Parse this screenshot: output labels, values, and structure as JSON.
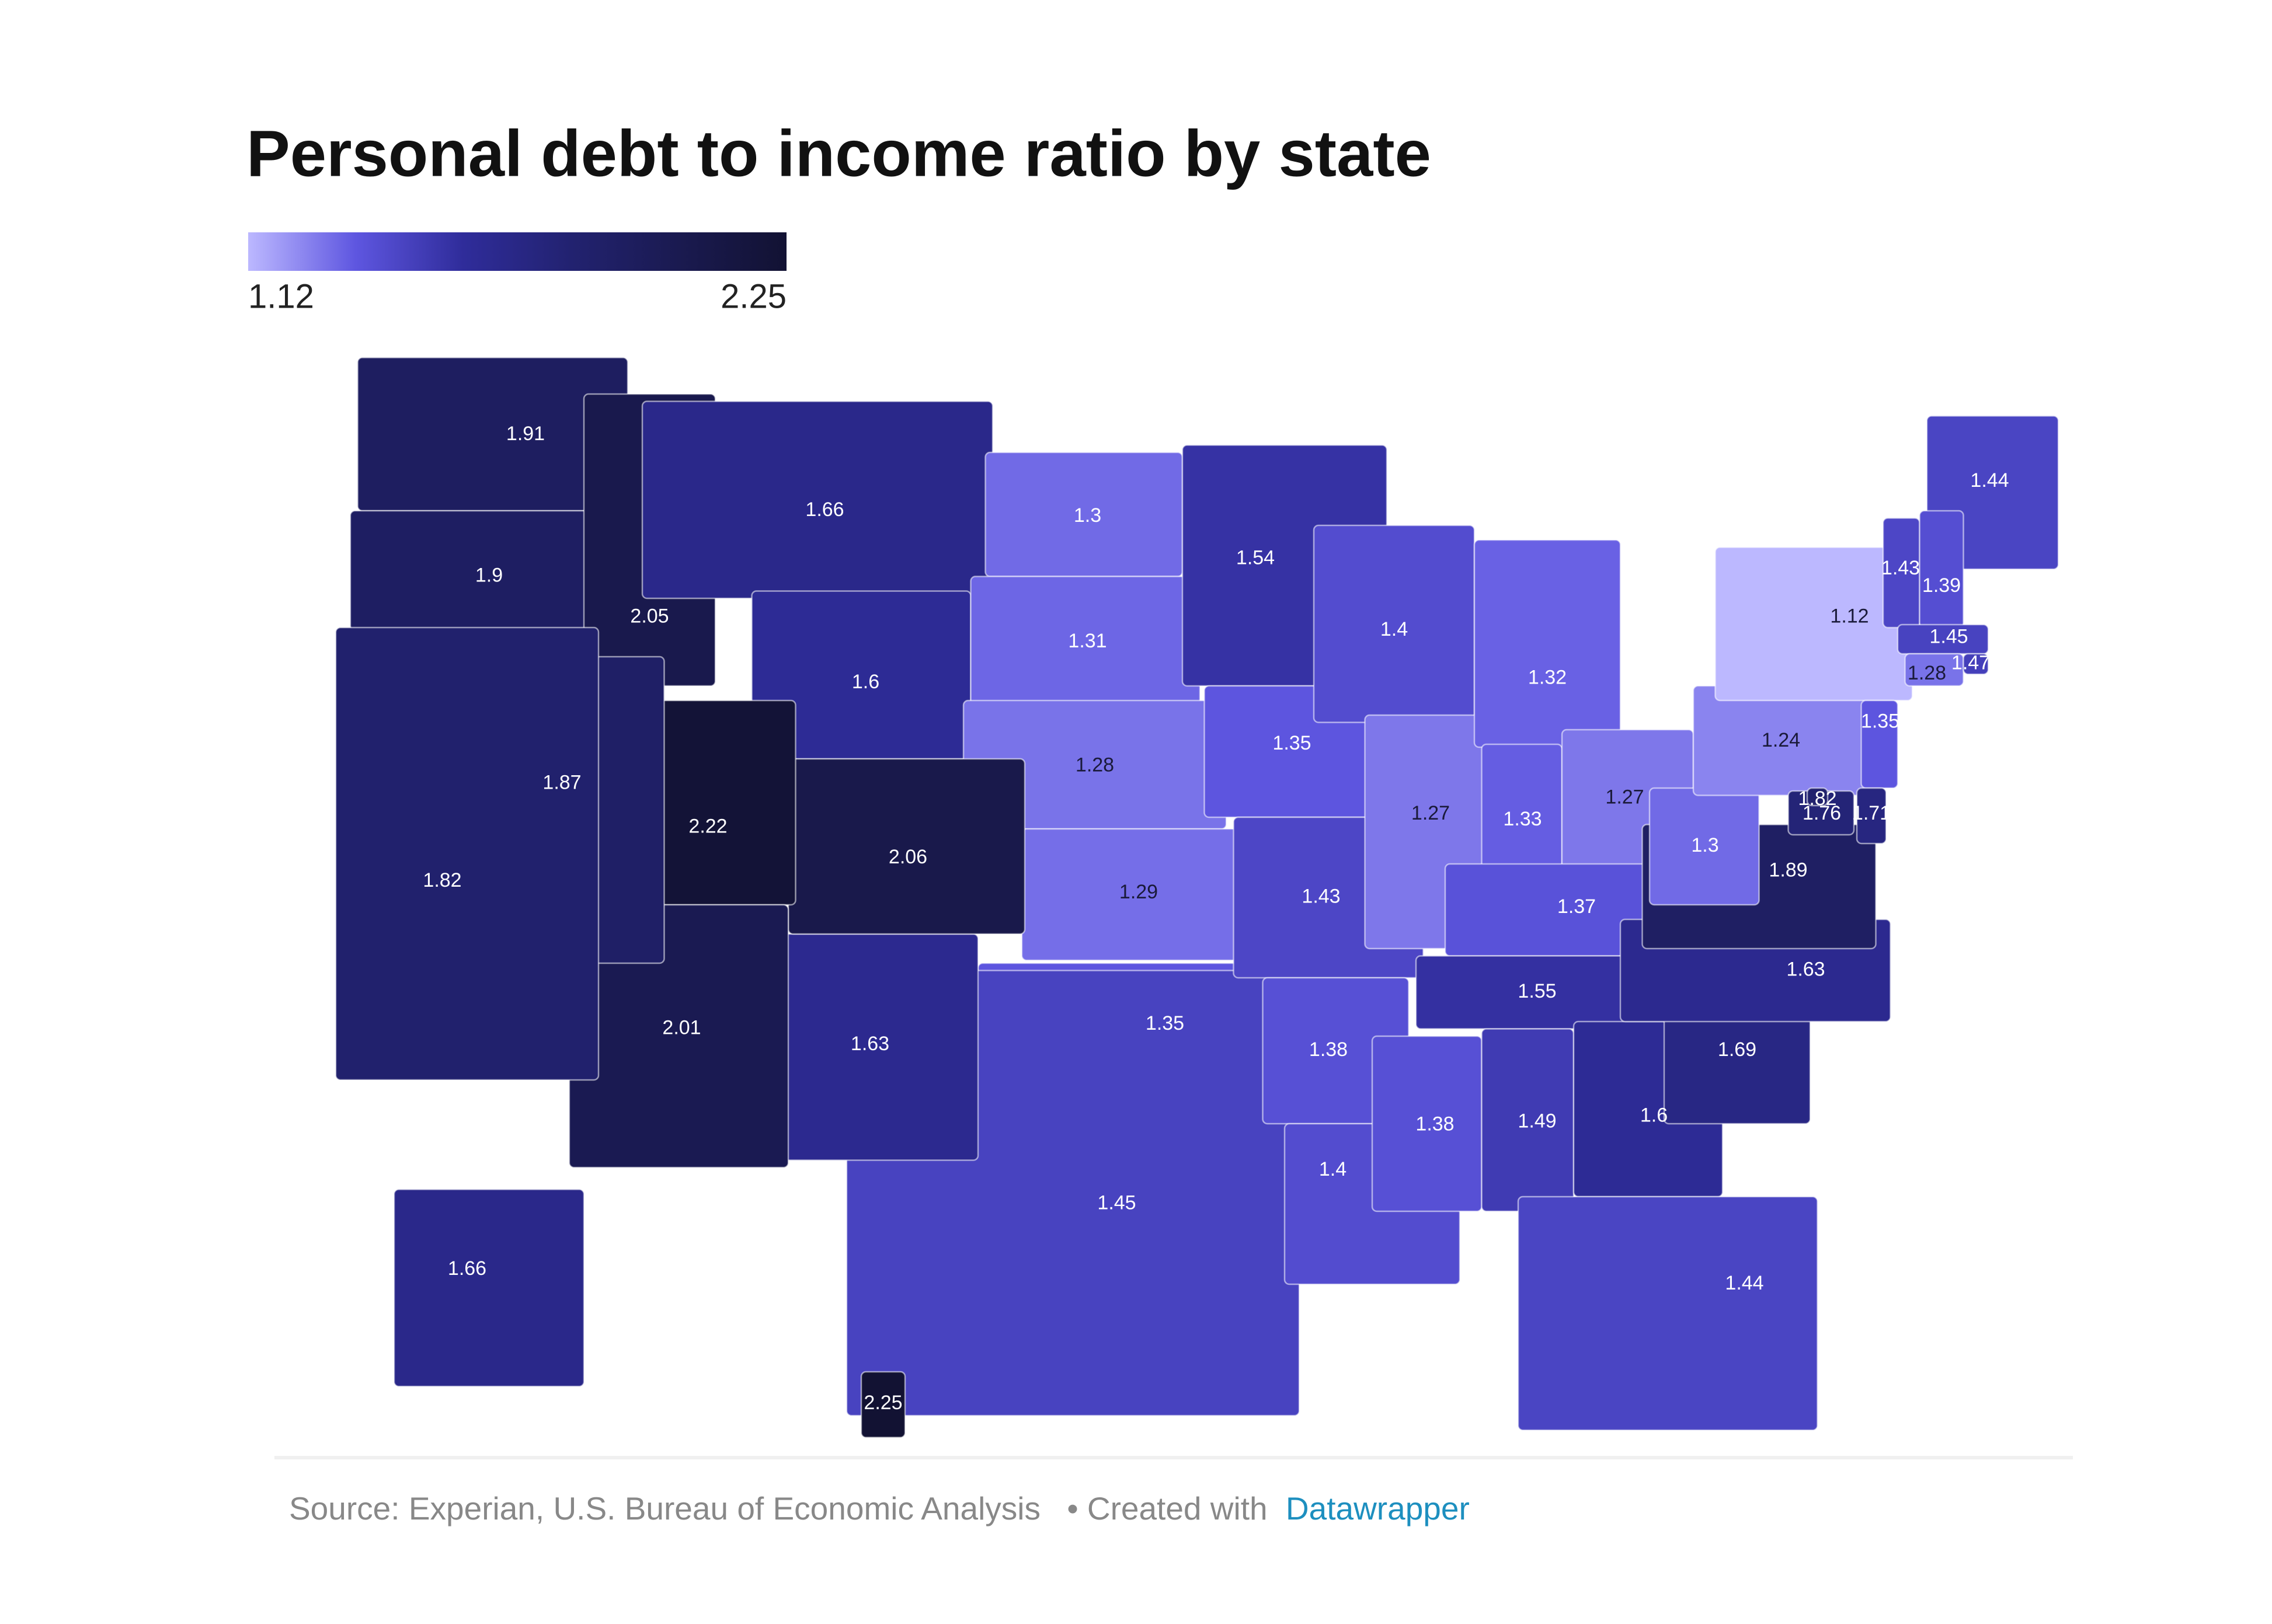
{
  "chart_data": {
    "type": "choropleth",
    "title": "Personal debt to income ratio by state",
    "legend": {
      "min": 1.12,
      "max": 2.25,
      "colors": [
        "#bcb8ff",
        "#5e56e0",
        "#2f2c9a",
        "#222270",
        "#1a1a50",
        "#121233"
      ]
    },
    "values": [
      1.91,
      1.9,
      2.05,
      1.66,
      1.6,
      1.3,
      1.31,
      1.28,
      1.29,
      1.35,
      1.45,
      1.63,
      2.06,
      2.22,
      2.01,
      1.87,
      1.82,
      1.54,
      1.35,
      1.43,
      1.38,
      1.4,
      1.4,
      1.27,
      1.32,
      1.33,
      1.27,
      1.37,
      1.55,
      1.38,
      1.49,
      1.6,
      1.44,
      1.69,
      1.63,
      1.89,
      1.3,
      1.24,
      1.12,
      1.44,
      1.43,
      1.39,
      1.45,
      1.28,
      1.47,
      1.35,
      1.76,
      1.71,
      1.82,
      1.66,
      2.25
    ],
    "source": "Source: Experian, U.S. Bureau of Economic Analysis",
    "credit": "• Created with",
    "credit_link": "Datawrapper"
  }
}
